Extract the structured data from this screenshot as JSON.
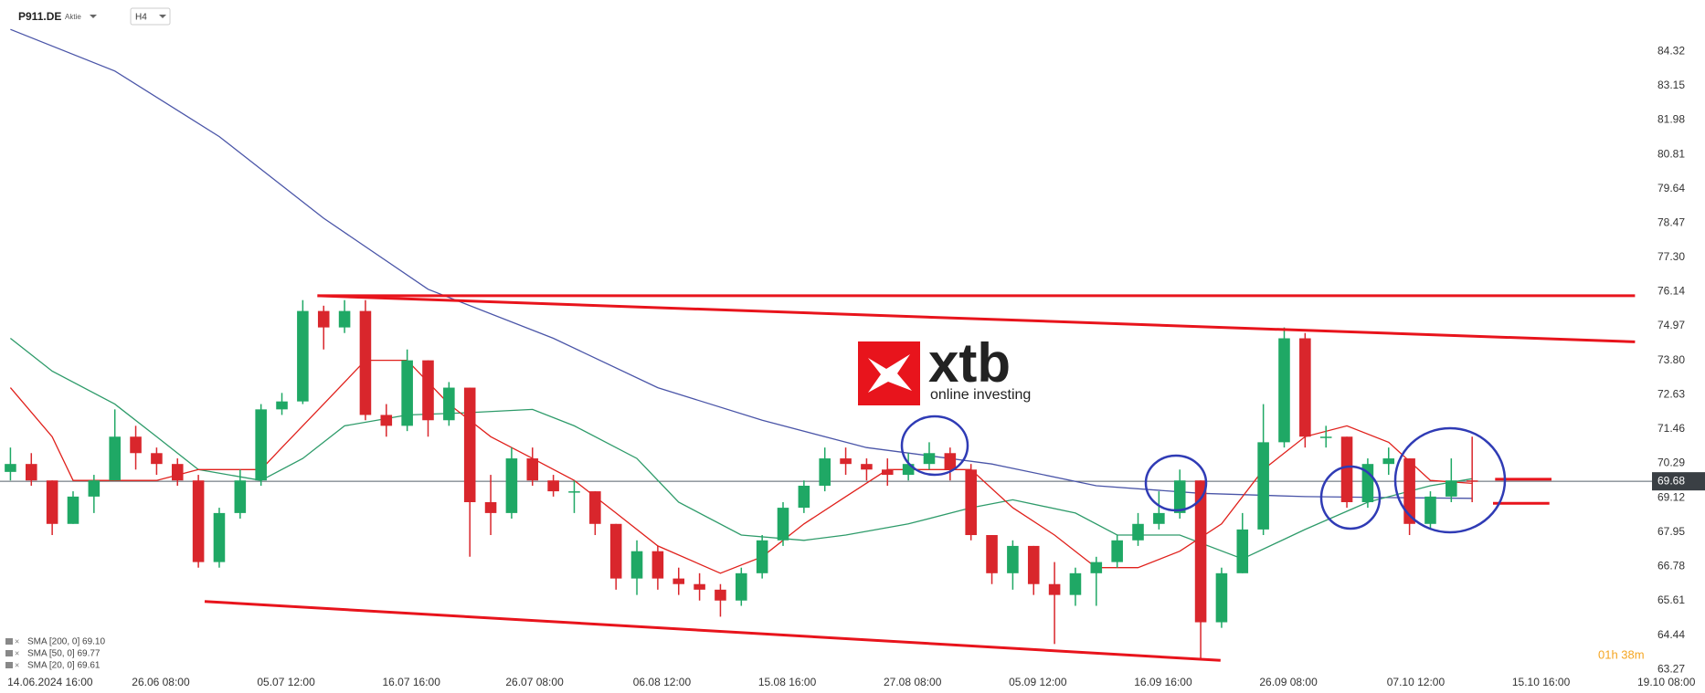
{
  "header": {
    "symbol": "P911.DE",
    "kind": "Aktie",
    "timeframe": "H4"
  },
  "watermark": {
    "brand": "xtb",
    "tagline": "online investing"
  },
  "timer": "01h 38m",
  "chart_data": {
    "type": "candlestick",
    "open": [
      70.0,
      70.27,
      69.71,
      68.23,
      69.16,
      69.71,
      71.2,
      70.64,
      70.27,
      69.71,
      66.93,
      68.6,
      69.71,
      72.13,
      72.4,
      75.48,
      74.92,
      75.48,
      71.94,
      71.57,
      73.8,
      71.76,
      72.87,
      68.97,
      68.6,
      70.46,
      69.71,
      69.34,
      69.34,
      68.23,
      66.37,
      67.3,
      66.37,
      66.18,
      65.99,
      65.62,
      66.55,
      67.67,
      68.78,
      69.53,
      70.46,
      70.27,
      70.08,
      69.9,
      70.27,
      70.64,
      70.08,
      67.85,
      66.55,
      67.48,
      66.18,
      65.81,
      66.55,
      66.93,
      67.67,
      68.23,
      68.6,
      69.71,
      64.88,
      66.55,
      68.04,
      71.01,
      74.55,
      71.2,
      71.2,
      68.97,
      70.27,
      70.46,
      68.23,
      69.16,
      69.71
    ],
    "high": [
      70.83,
      70.64,
      69.71,
      69.34,
      69.9,
      72.13,
      71.57,
      70.83,
      70.46,
      69.9,
      68.78,
      70.08,
      72.31,
      72.69,
      75.85,
      75.66,
      75.85,
      75.85,
      72.31,
      74.17,
      73.8,
      73.06,
      72.87,
      69.9,
      70.83,
      70.83,
      69.9,
      69.71,
      69.34,
      68.23,
      67.67,
      67.48,
      66.74,
      66.55,
      66.18,
      66.74,
      67.85,
      68.97,
      69.71,
      70.83,
      70.83,
      70.46,
      70.46,
      70.64,
      71.01,
      70.83,
      70.27,
      67.85,
      67.67,
      67.48,
      66.93,
      66.74,
      67.11,
      67.85,
      68.6,
      69.34,
      70.08,
      69.71,
      66.74,
      68.6,
      72.31,
      74.92,
      74.73,
      71.57,
      71.2,
      70.46,
      70.83,
      70.46,
      69.34,
      70.46,
      71.2
    ],
    "low": [
      69.71,
      69.53,
      67.85,
      68.23,
      68.6,
      69.71,
      70.08,
      69.9,
      69.53,
      66.74,
      66.74,
      68.41,
      69.53,
      71.94,
      72.31,
      74.17,
      74.73,
      71.76,
      71.2,
      71.39,
      71.2,
      71.57,
      67.11,
      67.85,
      68.41,
      69.53,
      69.16,
      68.6,
      67.85,
      65.99,
      65.81,
      65.99,
      65.81,
      65.62,
      65.07,
      65.44,
      66.37,
      67.48,
      68.6,
      69.34,
      69.9,
      69.71,
      69.53,
      69.71,
      70.08,
      69.71,
      67.67,
      66.18,
      65.99,
      65.81,
      64.14,
      65.44,
      65.44,
      66.74,
      67.48,
      68.04,
      68.41,
      63.58,
      64.69,
      66.55,
      67.85,
      70.83,
      70.83,
      70.83,
      68.78,
      68.78,
      69.9,
      67.85,
      68.04,
      68.97,
      68.97
    ],
    "close": [
      70.27,
      69.71,
      68.23,
      69.16,
      69.71,
      71.2,
      70.64,
      70.27,
      69.71,
      66.93,
      68.6,
      69.71,
      72.13,
      72.4,
      75.48,
      74.92,
      75.48,
      71.94,
      71.57,
      73.8,
      71.76,
      72.87,
      68.97,
      68.6,
      70.46,
      69.71,
      69.34,
      69.34,
      68.23,
      66.37,
      67.3,
      66.37,
      66.18,
      65.99,
      65.62,
      66.55,
      67.67,
      68.78,
      69.53,
      70.46,
      70.27,
      70.08,
      69.9,
      70.27,
      70.64,
      70.08,
      67.85,
      66.55,
      67.48,
      66.18,
      65.81,
      66.55,
      66.93,
      67.67,
      68.23,
      68.6,
      69.71,
      64.88,
      66.55,
      68.04,
      71.01,
      74.55,
      71.2,
      71.2,
      68.97,
      70.27,
      70.46,
      68.23,
      69.16,
      69.71,
      69.68
    ],
    "up_color": "#1fa865",
    "down_color": "#d9262c",
    "overlays": [
      {
        "name": "SMA [200, 0] 69.10",
        "color": "#4a55a8",
        "x": [
          0,
          5,
          10,
          15,
          20,
          26,
          31,
          36,
          41,
          47,
          52,
          57,
          62,
          67,
          70
        ],
        "values": [
          85.07,
          83.65,
          81.42,
          78.64,
          76.22,
          74.55,
          72.87,
          71.76,
          70.83,
          70.27,
          69.53,
          69.27,
          69.16,
          69.12,
          69.1
        ]
      },
      {
        "name": "SMA [50, 0] 69.77",
        "color": "#2e9b6a",
        "x": [
          0,
          2,
          5,
          7,
          9,
          12,
          14,
          16,
          19,
          22,
          25,
          27,
          30,
          32,
          35,
          38,
          40,
          43,
          46,
          48,
          51,
          53,
          56,
          59,
          62,
          65,
          68,
          70
        ],
        "values": [
          74.55,
          73.43,
          72.31,
          71.2,
          70.08,
          69.71,
          70.46,
          71.57,
          71.94,
          72.02,
          72.13,
          71.57,
          70.46,
          68.97,
          67.85,
          67.67,
          67.85,
          68.23,
          68.78,
          69.05,
          68.6,
          67.85,
          67.85,
          67.04,
          68.04,
          68.97,
          69.53,
          69.77
        ]
      },
      {
        "name": "SMA [20, 0] 69.61",
        "color": "#e0201b",
        "x": [
          0,
          2,
          3,
          5,
          7,
          9,
          12,
          13,
          15,
          17,
          19,
          21,
          23,
          25,
          27,
          29,
          31,
          34,
          36,
          38,
          40,
          42,
          44,
          46,
          48,
          50,
          52,
          54,
          56,
          58,
          60,
          62,
          64,
          66,
          68,
          70
        ],
        "values": [
          72.87,
          71.2,
          69.71,
          69.71,
          69.71,
          70.08,
          70.08,
          70.83,
          72.31,
          73.8,
          73.8,
          72.31,
          71.2,
          70.46,
          69.71,
          68.6,
          67.48,
          66.55,
          67.11,
          68.23,
          69.16,
          70.08,
          70.08,
          70.08,
          68.78,
          67.85,
          66.74,
          66.74,
          67.3,
          68.23,
          70.08,
          71.2,
          71.57,
          71.01,
          69.71,
          69.61
        ]
      }
    ],
    "trendlines": [
      {
        "x": [
          14.7,
          77.8
        ],
        "values": [
          76.0,
          76.0
        ]
      },
      {
        "x": [
          14.7,
          77.8
        ],
        "values": [
          76.0,
          74.43
        ]
      },
      {
        "x": [
          9.3,
          57.95
        ],
        "values": [
          65.59,
          63.58
        ]
      },
      {
        "x": [
          71.1,
          73.8
        ],
        "values": [
          69.75,
          69.75
        ]
      },
      {
        "x": [
          71.0,
          73.7
        ],
        "values": [
          68.93,
          68.93
        ]
      }
    ],
    "trendline_color": "#e8141c",
    "current_price": 69.68,
    "xlim": [
      -0.5,
      78
    ],
    "xticks": [
      {
        "value": 1.9,
        "label": "14.06.2024 16:00"
      },
      {
        "value": 7.2,
        "label": "26.06 08:00"
      },
      {
        "value": 13.2,
        "label": "05.07 12:00"
      },
      {
        "value": 19.2,
        "label": "16.07 16:00"
      },
      {
        "value": 25.1,
        "label": "26.07 08:00"
      },
      {
        "value": 31.2,
        "label": "06.08 12:00"
      },
      {
        "value": 37.2,
        "label": "15.08 16:00"
      },
      {
        "value": 43.2,
        "label": "27.08 08:00"
      },
      {
        "value": 49.2,
        "label": "05.09 12:00"
      },
      {
        "value": 55.2,
        "label": "16.09 16:00"
      },
      {
        "value": 61.2,
        "label": "26.09 08:00"
      },
      {
        "value": 67.3,
        "label": "07.10 12:00"
      },
      {
        "value": 73.3,
        "label": "15.10 16:00"
      },
      {
        "value": 79.3,
        "label": "19.10 08:00"
      }
    ],
    "ylim": [
      63.0,
      86.07
    ],
    "yticks": [
      84.32,
      83.15,
      81.98,
      80.81,
      79.64,
      78.47,
      {
        "value": 77.3,
        "label": "77.30"
      },
      76.14,
      74.97,
      {
        "value": 73.8,
        "label": "73.80"
      },
      72.63,
      71.46,
      70.29,
      69.12,
      67.95,
      66.78,
      65.61,
      64.44,
      63.27
    ],
    "grid": false
  }
}
